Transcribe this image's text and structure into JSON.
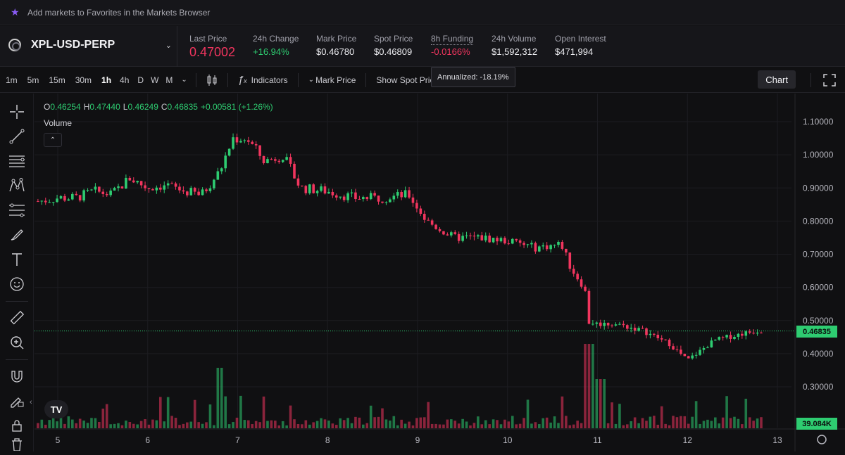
{
  "banner": {
    "icon": "star-icon",
    "text": "Add markets to Favorites in the Markets Browser"
  },
  "market": {
    "pair": "XPL-USD-PERP",
    "stats": [
      {
        "label": "Last Price",
        "value": "0.47002"
      },
      {
        "label": "24h Change",
        "value": "+16.94%"
      },
      {
        "label": "Mark Price",
        "value": "$0.46780"
      },
      {
        "label": "Spot Price",
        "value": "$0.46809"
      },
      {
        "label": "8h Funding",
        "value": "-0.0166%"
      },
      {
        "label": "24h Volume",
        "value": "$1,592,312"
      },
      {
        "label": "Open Interest",
        "value": "$471,994"
      }
    ]
  },
  "toolbar": {
    "timeframes": [
      "1m",
      "5m",
      "15m",
      "30m",
      "1h",
      "4h",
      "D",
      "W",
      "M"
    ],
    "active": "1h",
    "indicators": "Indicators",
    "mark_price": "Mark Price",
    "show_spot": "Show Spot Pric",
    "chart_button": "Chart",
    "tooltip": "Annualized: -18.19%"
  },
  "legend": {
    "o_label": "O",
    "o": "0.46254",
    "h_label": "H",
    "h": "0.47440",
    "l_label": "L",
    "l": "0.46249",
    "c_label": "C",
    "c": "0.46835",
    "change": "+0.00581 (+1.26%)",
    "volume_label": "Volume"
  },
  "tags": {
    "price": "0.46835",
    "volume": "39.084K"
  },
  "colors": {
    "up": "#2ecc71",
    "down": "#f1355e",
    "background": "#101012"
  },
  "chart_data": {
    "type": "candlestick",
    "y_ticks": [
      "1.10000",
      "1.00000",
      "0.90000",
      "0.80000",
      "0.70000",
      "0.60000",
      "0.50000",
      "0.40000",
      "0.30000"
    ],
    "x_ticks": [
      "5",
      "6",
      "7",
      "8",
      "9",
      "10",
      "11",
      "12",
      "13"
    ],
    "ylim": [
      0.26,
      1.12
    ],
    "last_price": 0.46835,
    "series": [
      {
        "day": 4.8,
        "close": 0.86
      },
      {
        "day": 5.0,
        "close": 0.87
      },
      {
        "day": 5.2,
        "close": 0.87
      },
      {
        "day": 5.4,
        "close": 0.89
      },
      {
        "day": 5.6,
        "close": 0.88
      },
      {
        "day": 5.8,
        "close": 0.93
      },
      {
        "day": 6.0,
        "close": 0.9
      },
      {
        "day": 6.2,
        "close": 0.91
      },
      {
        "day": 6.4,
        "close": 0.89
      },
      {
        "day": 6.6,
        "close": 0.88
      },
      {
        "day": 6.8,
        "close": 0.95
      },
      {
        "day": 6.95,
        "close": 1.05
      },
      {
        "day": 7.1,
        "close": 1.05
      },
      {
        "day": 7.3,
        "close": 0.98
      },
      {
        "day": 7.5,
        "close": 1.0
      },
      {
        "day": 7.7,
        "close": 0.9
      },
      {
        "day": 8.0,
        "close": 0.89
      },
      {
        "day": 8.3,
        "close": 0.87
      },
      {
        "day": 8.6,
        "close": 0.87
      },
      {
        "day": 8.9,
        "close": 0.88
      },
      {
        "day": 9.1,
        "close": 0.8
      },
      {
        "day": 9.4,
        "close": 0.75
      },
      {
        "day": 9.7,
        "close": 0.75
      },
      {
        "day": 10.0,
        "close": 0.74
      },
      {
        "day": 10.3,
        "close": 0.72
      },
      {
        "day": 10.6,
        "close": 0.73
      },
      {
        "day": 10.7,
        "close": 0.66
      },
      {
        "day": 10.85,
        "close": 0.6
      },
      {
        "day": 10.95,
        "close": 0.49
      },
      {
        "day": 11.2,
        "close": 0.49
      },
      {
        "day": 11.5,
        "close": 0.47
      },
      {
        "day": 11.8,
        "close": 0.43
      },
      {
        "day": 12.0,
        "close": 0.38
      },
      {
        "day": 12.3,
        "close": 0.44
      },
      {
        "day": 12.6,
        "close": 0.46
      },
      {
        "day": 12.8,
        "close": 0.47
      }
    ]
  },
  "left_tools": [
    "crosshair-icon",
    "trend-line-icon",
    "horizontal-lines-icon",
    "pattern-icon",
    "fib-icon",
    "brush-icon",
    "text-icon",
    "emoji-icon",
    "ruler-icon",
    "zoom-in-icon",
    "magnet-icon",
    "lock-drawing-icon",
    "lock-icon",
    "trash-icon"
  ]
}
